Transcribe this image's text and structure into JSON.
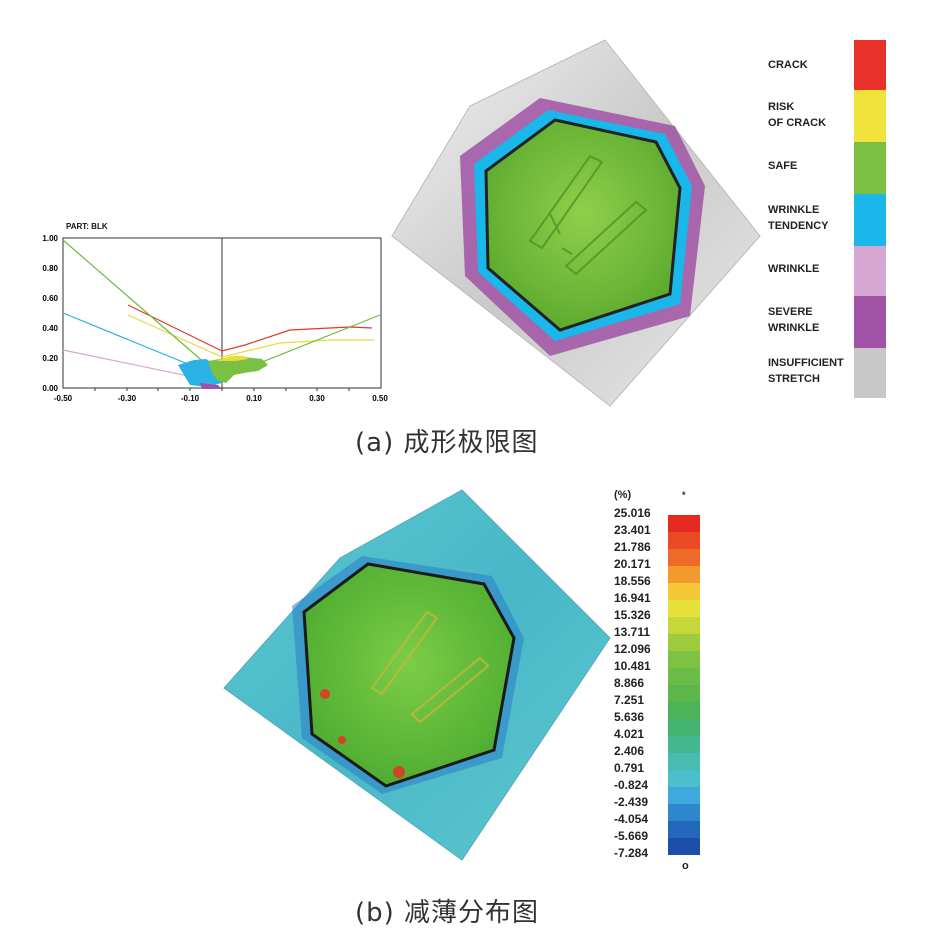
{
  "fld_chart": {
    "part_label": "PART:  BLK",
    "y_ticks": [
      "1.00",
      "0.80",
      "0.60",
      "0.40",
      "0.20",
      "0.00"
    ],
    "x_ticks": [
      "-0.50",
      "-0.30",
      "-0.10",
      "0.10",
      "0.30",
      "0.50"
    ]
  },
  "legend_a": [
    {
      "label": "CRACK",
      "color": "#e8312a"
    },
    {
      "label": "RISK\nOF CRACK",
      "color": "#f1e23c"
    },
    {
      "label": "SAFE",
      "color": "#7ac043"
    },
    {
      "label": "WRINKLE\nTENDENCY",
      "color": "#1ab7ea"
    },
    {
      "label": "WRINKLE",
      "color": "#d6a7d2"
    },
    {
      "label": "SEVERE\nWRINKLE",
      "color": "#a052a6"
    },
    {
      "label": "INSUFFICIENT\nSTRETCH",
      "color": "#c8c8c8"
    }
  ],
  "caption_a": "(a) 成形极限图",
  "scale_b": {
    "unit": "(%)",
    "top_mark": "*",
    "bottom_mark": "o",
    "values": [
      "25.016",
      "23.401",
      "21.786",
      "20.171",
      "18.556",
      "16.941",
      "15.326",
      "13.711",
      "12.096",
      "10.481",
      "8.866",
      "7.251",
      "5.636",
      "4.021",
      "2.406",
      "0.791",
      "-0.824",
      "-2.439",
      "-4.054",
      "-5.669",
      "-7.284"
    ],
    "colors": [
      "#e62a22",
      "#ea4a24",
      "#ee6a26",
      "#f39a2c",
      "#f4c834",
      "#e6e03a",
      "#c4d83c",
      "#9ccc3e",
      "#7ec244",
      "#6cbc48",
      "#5cb64c",
      "#4cb458",
      "#44b470",
      "#44b690",
      "#48bcb0",
      "#4cbfcc",
      "#3fa8dc",
      "#2e86cc",
      "#2468bc",
      "#1a4ea8"
    ]
  },
  "caption_b": "(b) 减薄分布图"
}
